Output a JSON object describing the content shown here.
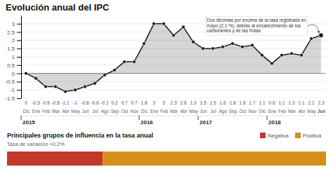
{
  "chart_data": [
    {
      "type": "area",
      "title": "Evolución anual del IPC",
      "categories": [
        "Dic",
        "Ene",
        "Feb",
        "Mar",
        "Abr",
        "May",
        "Jun",
        "Jul",
        "Ago",
        "Sep",
        "Oct",
        "Nov",
        "Dic",
        "Ene",
        "Feb",
        "Mar",
        "Abr",
        "May",
        "Jun",
        "Jul",
        "Ago",
        "Sep",
        "Oct",
        "Nov",
        "Dic",
        "Ene",
        "Feb",
        "Mar",
        "Abr",
        "May",
        "Jun"
      ],
      "values": [
        0,
        -0.3,
        -0.8,
        -0.8,
        -1.1,
        -1,
        -0.8,
        -0.6,
        -0.1,
        0.2,
        0.7,
        0.7,
        1.8,
        3,
        3,
        2.3,
        2.8,
        1.9,
        1.5,
        1.5,
        1.6,
        1.8,
        1.6,
        1.7,
        1.1,
        0.6,
        1.1,
        1.2,
        1.1,
        2.1,
        2.3
      ],
      "color": "#1a1a1a",
      "marker": "circle",
      "ylim": [
        -1.5,
        3.5
      ],
      "yticks": [
        -1.5,
        -1,
        -0.5,
        0,
        0.5,
        1,
        1.5,
        2,
        2.5,
        3
      ],
      "grid": true,
      "data_labels": true,
      "x2ticks": [
        {
          "value": 0,
          "label": "2015"
        },
        {
          "value": 12,
          "label": "2016"
        },
        {
          "value": 18,
          "label": "2017"
        },
        {
          "value": 25,
          "label": "2018"
        }
      ],
      "annotation": "Dos décimas por encima de la tasa registrada en\nmayo (2,1 %), debido al encarecimiento de los\ncarburantes y de las frutas"
    },
    {
      "type": "bar",
      "orientation": "horizontal",
      "stacked": true,
      "title": "Principales grupos de influencia en la tasa anual",
      "subtitle": "Tasa de variación +0,2%",
      "categories": [
        null
      ],
      "series": [
        {
          "name": "Negativa",
          "color": "#c0392b",
          "values": [
            0.3
          ]
        },
        {
          "name": "Positiva",
          "color": "#d4901a",
          "values": [
            0.7
          ]
        }
      ],
      "xlim": [
        0,
        1
      ],
      "tick_labels": false,
      "legend": "top-right"
    }
  ]
}
